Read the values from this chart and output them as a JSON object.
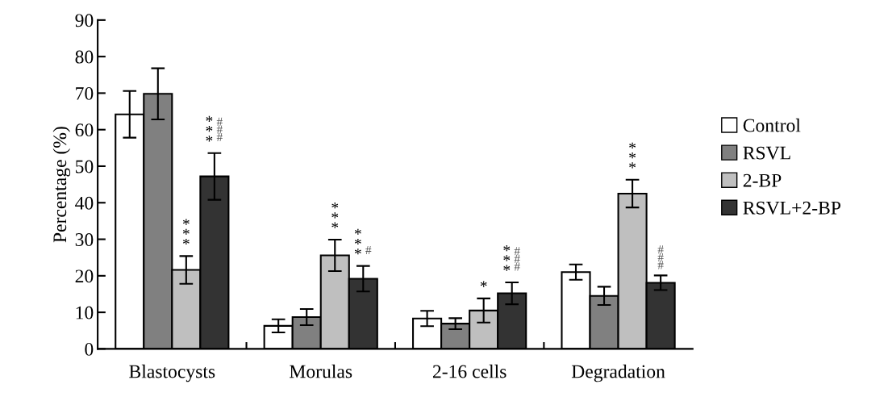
{
  "chart_data": {
    "type": "bar",
    "ylabel": "Percentage (%)",
    "categories": [
      "Blastocysts",
      "Morulas",
      "2-16 cells",
      "Degradation"
    ],
    "series": [
      {
        "name": "Control",
        "color": "#ffffff",
        "values": [
          64.2,
          6.3,
          8.3,
          21.0
        ],
        "errors": [
          6.4,
          1.8,
          2.1,
          2.1
        ]
      },
      {
        "name": "RSVL",
        "color": "#808080",
        "values": [
          69.8,
          8.7,
          6.9,
          14.5
        ],
        "errors": [
          7.0,
          2.2,
          1.5,
          2.5
        ]
      },
      {
        "name": "2-BP",
        "color": "#bfbfbf",
        "values": [
          21.6,
          25.6,
          10.5,
          42.5
        ],
        "errors": [
          3.8,
          4.3,
          3.3,
          3.8
        ],
        "value_labels": [
          "***",
          "***",
          "*",
          "***"
        ]
      },
      {
        "name": "RSVL+2-BP",
        "color": "#333333",
        "values": [
          47.2,
          19.2,
          15.2,
          18.1
        ],
        "errors": [
          6.4,
          3.5,
          3.0,
          2.0
        ],
        "value_labels": [
          "*** ###",
          "*** #",
          "*** ###",
          "###"
        ]
      }
    ],
    "ylim": [
      0,
      90
    ],
    "yticks": [
      0,
      10,
      20,
      30,
      40,
      50,
      60,
      70,
      80,
      90
    ],
    "grid": false,
    "legend": "right"
  }
}
